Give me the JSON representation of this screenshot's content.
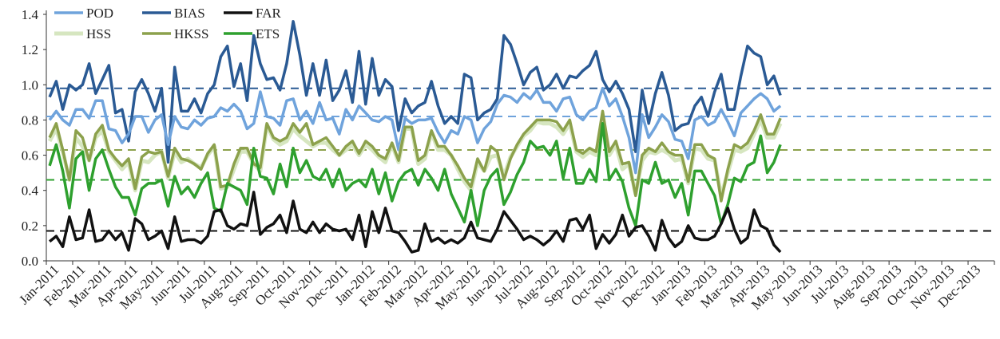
{
  "chart_data": {
    "type": "line",
    "ylim": [
      0,
      1.4
    ],
    "yticks": [
      "0.0",
      "0.2",
      "0.4",
      "0.6",
      "0.8",
      "1.0",
      "1.2",
      "1.4"
    ],
    "ytick_values": [
      0,
      0.2,
      0.4,
      0.6,
      0.8,
      1.0,
      1.2,
      1.4
    ],
    "xticks": [
      "Jan-2011",
      "Feb-2011",
      "Mar-2011",
      "Apr-2011",
      "May-2011",
      "Jun-2011",
      "Jul-2011",
      "Aug-2011",
      "Sep-2011",
      "Oct-2011",
      "Nov-2011",
      "Dec-2011",
      "Jan-2012",
      "Feb-2012",
      "Mar-2012",
      "Apr-2012",
      "May-2012",
      "Jun-2012",
      "Jul-2012",
      "Aug-2012",
      "Sep-2012",
      "Oct-2012",
      "Nov-2012",
      "Dec-2012",
      "Jan-2013",
      "Feb-2013",
      "Mar-2013",
      "Apr-2013",
      "May-2013",
      "Jun-2013",
      "Jul-2013",
      "Aug-2013",
      "Sep-2013",
      "Oct-2013",
      "Nov-2013",
      "Dec-2013"
    ],
    "points_per_month": 4,
    "legend": [
      {
        "name": "POD",
        "color": "#6fa3dc"
      },
      {
        "name": "BIAS",
        "color": "#2a5a94"
      },
      {
        "name": "FAR",
        "color": "#111111"
      },
      {
        "name": "HSS",
        "color": "#d6e6c0"
      },
      {
        "name": "HKSS",
        "color": "#8ca14c"
      },
      {
        "name": "ETS",
        "color": "#2ea02e"
      }
    ],
    "reference_lines": [
      {
        "series": "BIAS",
        "value": 0.98
      },
      {
        "series": "POD",
        "value": 0.82
      },
      {
        "series": "HKSS",
        "value": 0.63
      },
      {
        "series": "ETS",
        "value": 0.46
      },
      {
        "series": "FAR",
        "value": 0.17
      }
    ],
    "series": [
      {
        "name": "BIAS",
        "color": "#2a5a94",
        "values": [
          0.93,
          1.02,
          0.86,
          1.0,
          0.97,
          1.0,
          1.12,
          0.95,
          1.03,
          1.11,
          0.84,
          0.86,
          0.68,
          0.96,
          1.03,
          0.95,
          0.85,
          0.98,
          0.56,
          1.1,
          0.85,
          0.85,
          0.92,
          0.84,
          0.95,
          1.0,
          1.16,
          1.22,
          0.99,
          1.12,
          0.91,
          1.28,
          1.12,
          1.03,
          1.04,
          0.97,
          1.12,
          1.36,
          1.17,
          0.94,
          1.12,
          0.94,
          1.14,
          0.91,
          0.97,
          1.08,
          0.9,
          1.19,
          0.89,
          1.15,
          0.94,
          1.03,
          0.99,
          0.74,
          0.92,
          0.84,
          0.88,
          0.9,
          1.02,
          0.88,
          0.78,
          0.82,
          0.78,
          1.06,
          1.04,
          0.8,
          0.84,
          0.86,
          0.92,
          1.28,
          1.23,
          1.12,
          1.0,
          1.07,
          1.1,
          0.97,
          1.0,
          1.06,
          0.98,
          1.05,
          1.04,
          1.08,
          1.11,
          1.19,
          1.03,
          0.96,
          1.02,
          0.95,
          0.86,
          0.62,
          0.97,
          0.78,
          0.95,
          1.07,
          0.94,
          0.74,
          0.77,
          0.78,
          0.88,
          0.93,
          0.82,
          0.96,
          1.06,
          0.86,
          0.86,
          1.05,
          1.22,
          1.18,
          1.16,
          1.0,
          1.05,
          0.94
        ]
      },
      {
        "name": "POD",
        "color": "#6fa3dc",
        "values": [
          0.8,
          0.85,
          0.8,
          0.77,
          0.86,
          0.86,
          0.81,
          0.91,
          0.91,
          0.75,
          0.74,
          0.67,
          0.72,
          0.82,
          0.82,
          0.73,
          0.8,
          0.83,
          0.66,
          0.82,
          0.76,
          0.75,
          0.8,
          0.77,
          0.81,
          0.82,
          0.87,
          0.85,
          0.89,
          0.85,
          0.75,
          0.78,
          0.96,
          0.82,
          0.81,
          0.77,
          0.91,
          0.92,
          0.8,
          0.85,
          0.78,
          0.9,
          0.8,
          0.81,
          0.72,
          0.86,
          0.8,
          0.88,
          0.84,
          0.8,
          0.79,
          0.82,
          0.8,
          0.63,
          0.81,
          0.78,
          0.8,
          0.8,
          0.81,
          0.73,
          0.67,
          0.74,
          0.72,
          0.82,
          0.8,
          0.67,
          0.75,
          0.79,
          0.89,
          0.94,
          0.93,
          0.9,
          0.95,
          0.92,
          0.97,
          0.9,
          0.9,
          0.85,
          0.92,
          0.93,
          0.83,
          0.8,
          0.85,
          0.87,
          0.98,
          0.88,
          0.92,
          0.82,
          0.7,
          0.5,
          0.83,
          0.7,
          0.76,
          0.83,
          0.79,
          0.69,
          0.68,
          0.58,
          0.8,
          0.82,
          0.77,
          0.79,
          0.86,
          0.79,
          0.71,
          0.84,
          0.88,
          0.92,
          0.95,
          0.92,
          0.85,
          0.88
        ]
      },
      {
        "name": "HSS",
        "color": "#d6e6c0",
        "values": [
          0.68,
          0.75,
          0.62,
          0.46,
          0.7,
          0.65,
          0.57,
          0.7,
          0.74,
          0.62,
          0.57,
          0.52,
          0.56,
          0.4,
          0.57,
          0.56,
          0.6,
          0.62,
          0.47,
          0.62,
          0.56,
          0.58,
          0.55,
          0.53,
          0.6,
          0.65,
          0.41,
          0.42,
          0.52,
          0.62,
          0.62,
          0.55,
          0.51,
          0.77,
          0.69,
          0.66,
          0.68,
          0.75,
          0.71,
          0.68,
          0.65,
          0.67,
          0.67,
          0.63,
          0.6,
          0.63,
          0.66,
          0.6,
          0.66,
          0.63,
          0.59,
          0.56,
          0.66,
          0.56,
          0.75,
          0.75,
          0.55,
          0.58,
          0.73,
          0.63,
          0.63,
          0.6,
          0.52,
          0.45,
          0.4,
          0.56,
          0.51,
          0.59,
          0.6,
          0.48,
          0.59,
          0.65,
          0.71,
          0.74,
          0.79,
          0.78,
          0.78,
          0.76,
          0.72,
          0.78,
          0.62,
          0.59,
          0.62,
          0.6,
          0.8,
          0.6,
          0.66,
          0.52,
          0.55,
          0.38,
          0.57,
          0.62,
          0.61,
          0.63,
          0.61,
          0.57,
          0.58,
          0.44,
          0.64,
          0.63,
          0.58,
          0.57,
          0.37,
          0.5,
          0.63,
          0.62,
          0.64,
          0.72,
          0.8,
          0.7,
          0.7,
          0.78
        ]
      },
      {
        "name": "HKSS",
        "color": "#8ca14c",
        "values": [
          0.7,
          0.78,
          0.63,
          0.46,
          0.74,
          0.7,
          0.57,
          0.72,
          0.77,
          0.63,
          0.58,
          0.54,
          0.58,
          0.41,
          0.59,
          0.62,
          0.61,
          0.62,
          0.48,
          0.64,
          0.58,
          0.57,
          0.55,
          0.52,
          0.61,
          0.66,
          0.42,
          0.43,
          0.55,
          0.64,
          0.64,
          0.55,
          0.53,
          0.78,
          0.7,
          0.68,
          0.7,
          0.78,
          0.73,
          0.78,
          0.66,
          0.68,
          0.7,
          0.65,
          0.6,
          0.65,
          0.68,
          0.61,
          0.68,
          0.65,
          0.6,
          0.58,
          0.67,
          0.57,
          0.76,
          0.76,
          0.57,
          0.6,
          0.74,
          0.65,
          0.65,
          0.6,
          0.54,
          0.47,
          0.42,
          0.58,
          0.51,
          0.65,
          0.62,
          0.46,
          0.58,
          0.66,
          0.72,
          0.76,
          0.8,
          0.8,
          0.8,
          0.79,
          0.74,
          0.8,
          0.63,
          0.61,
          0.64,
          0.62,
          0.85,
          0.62,
          0.68,
          0.55,
          0.56,
          0.37,
          0.6,
          0.64,
          0.62,
          0.67,
          0.62,
          0.6,
          0.6,
          0.45,
          0.66,
          0.66,
          0.6,
          0.58,
          0.34,
          0.52,
          0.66,
          0.64,
          0.67,
          0.74,
          0.83,
          0.72,
          0.72,
          0.81
        ]
      },
      {
        "name": "ETS",
        "color": "#2ea02e",
        "values": [
          0.54,
          0.66,
          0.51,
          0.3,
          0.58,
          0.62,
          0.4,
          0.58,
          0.63,
          0.52,
          0.42,
          0.36,
          0.36,
          0.26,
          0.41,
          0.44,
          0.44,
          0.46,
          0.31,
          0.48,
          0.38,
          0.42,
          0.36,
          0.44,
          0.5,
          0.3,
          0.28,
          0.44,
          0.42,
          0.4,
          0.32,
          0.64,
          0.48,
          0.47,
          0.38,
          0.55,
          0.42,
          0.64,
          0.5,
          0.57,
          0.48,
          0.46,
          0.52,
          0.42,
          0.52,
          0.4,
          0.44,
          0.46,
          0.42,
          0.52,
          0.38,
          0.5,
          0.34,
          0.45,
          0.5,
          0.52,
          0.43,
          0.52,
          0.47,
          0.4,
          0.52,
          0.38,
          0.3,
          0.22,
          0.4,
          0.2,
          0.4,
          0.48,
          0.52,
          0.32,
          0.39,
          0.49,
          0.56,
          0.68,
          0.64,
          0.65,
          0.6,
          0.68,
          0.47,
          0.64,
          0.44,
          0.44,
          0.52,
          0.45,
          0.78,
          0.46,
          0.52,
          0.45,
          0.3,
          0.2,
          0.46,
          0.44,
          0.56,
          0.44,
          0.46,
          0.36,
          0.44,
          0.26,
          0.51,
          0.51,
          0.44,
          0.37,
          0.21,
          0.32,
          0.47,
          0.45,
          0.54,
          0.56,
          0.71,
          0.5,
          0.56,
          0.66
        ]
      },
      {
        "name": "FAR",
        "color": "#111111",
        "values": [
          0.11,
          0.14,
          0.08,
          0.25,
          0.12,
          0.13,
          0.29,
          0.11,
          0.12,
          0.17,
          0.12,
          0.16,
          0.06,
          0.24,
          0.21,
          0.12,
          0.14,
          0.17,
          0.07,
          0.25,
          0.11,
          0.12,
          0.12,
          0.1,
          0.14,
          0.28,
          0.29,
          0.2,
          0.18,
          0.21,
          0.2,
          0.39,
          0.15,
          0.19,
          0.21,
          0.26,
          0.16,
          0.34,
          0.18,
          0.16,
          0.22,
          0.16,
          0.21,
          0.18,
          0.17,
          0.18,
          0.12,
          0.26,
          0.08,
          0.28,
          0.16,
          0.3,
          0.17,
          0.16,
          0.11,
          0.05,
          0.06,
          0.21,
          0.11,
          0.13,
          0.1,
          0.12,
          0.1,
          0.13,
          0.22,
          0.13,
          0.12,
          0.11,
          0.18,
          0.28,
          0.23,
          0.18,
          0.12,
          0.14,
          0.12,
          0.09,
          0.12,
          0.17,
          0.11,
          0.23,
          0.24,
          0.18,
          0.26,
          0.07,
          0.15,
          0.1,
          0.15,
          0.26,
          0.14,
          0.19,
          0.2,
          0.14,
          0.06,
          0.23,
          0.13,
          0.08,
          0.11,
          0.2,
          0.13,
          0.12,
          0.12,
          0.14,
          0.21,
          0.3,
          0.18,
          0.1,
          0.13,
          0.29,
          0.2,
          0.18,
          0.09,
          0.05
        ]
      }
    ]
  }
}
